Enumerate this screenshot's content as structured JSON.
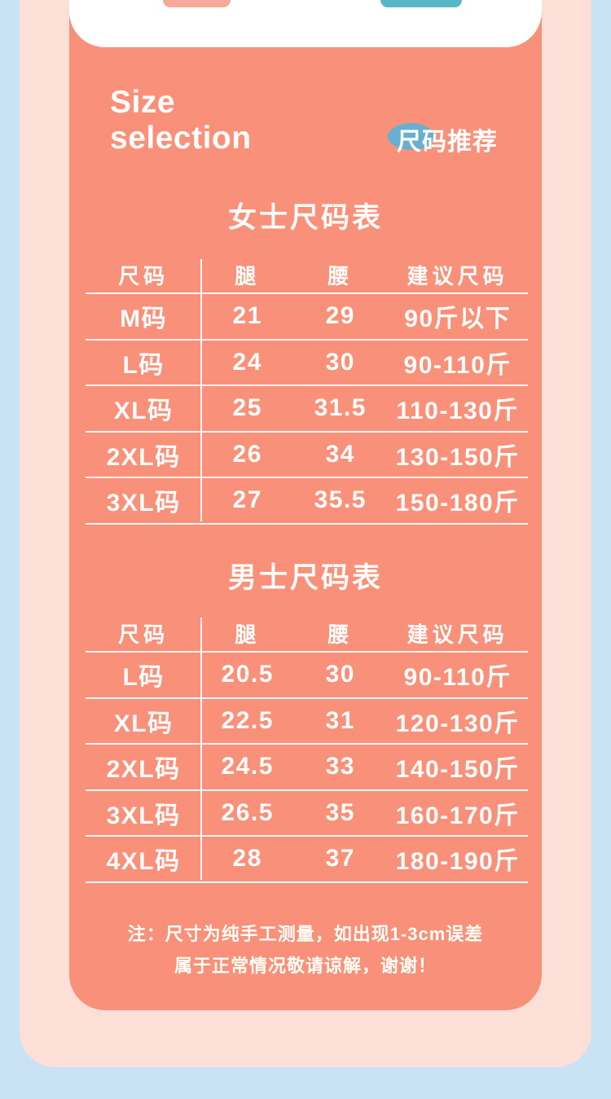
{
  "palette": {
    "background_blue": "#c9e3f5",
    "panel_pink": "#fcdfd7",
    "card_salmon": "#f9917a",
    "badge_blue": "#68b0d2",
    "tab_pink_remnant": "#f6a89a",
    "tab_teal_remnant": "#57b6c8",
    "text_white": "#fffdfb"
  },
  "header": {
    "title_line1": "Size",
    "title_line2": "selection",
    "badge_label": "尺码推荐"
  },
  "women_table": {
    "title": "女士尺码表",
    "headers": [
      "尺码",
      "腿",
      "腰",
      "建议尺码"
    ],
    "rows": [
      [
        "M码",
        "21",
        "29",
        "90斤以下"
      ],
      [
        "L码",
        "24",
        "30",
        "90-110斤"
      ],
      [
        "XL码",
        "25",
        "31.5",
        "110-130斤"
      ],
      [
        "2XL码",
        "26",
        "34",
        "130-150斤"
      ],
      [
        "3XL码",
        "27",
        "35.5",
        "150-180斤"
      ]
    ]
  },
  "men_table": {
    "title": "男士尺码表",
    "headers": [
      "尺码",
      "腿",
      "腰",
      "建议尺码"
    ],
    "rows": [
      [
        "L码",
        "20.5",
        "30",
        "90-110斤"
      ],
      [
        "XL码",
        "22.5",
        "31",
        "120-130斤"
      ],
      [
        "2XL码",
        "24.5",
        "33",
        "140-150斤"
      ],
      [
        "3XL码",
        "26.5",
        "35",
        "160-170斤"
      ],
      [
        "4XL码",
        "28",
        "37",
        "180-190斤"
      ]
    ]
  },
  "note": {
    "line1": "注：尺寸为纯手工测量，如出现1-3cm误差",
    "line2": "属于正常情况敬请谅解，谢谢！"
  }
}
